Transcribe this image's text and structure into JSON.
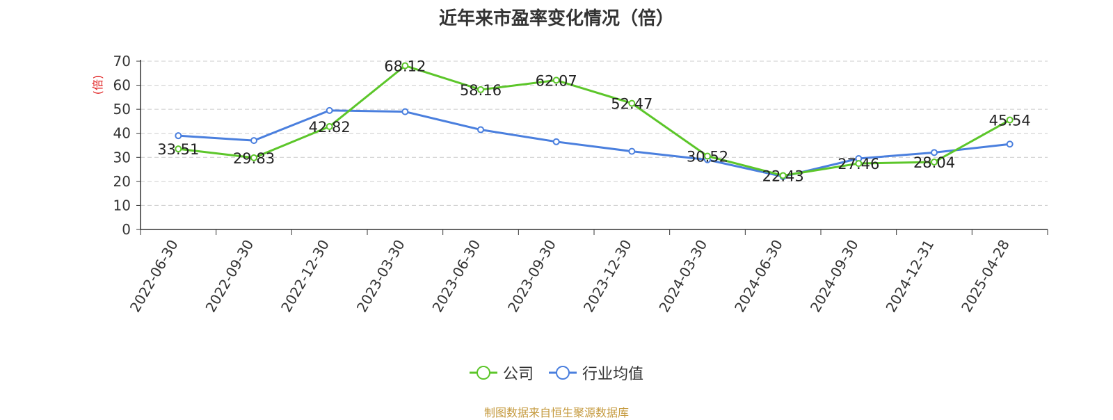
{
  "chart_data": {
    "type": "line",
    "title": "近年来市盈率变化情况（倍）",
    "ylabel": "(倍)",
    "xlabel": "",
    "ylim": [
      0,
      70
    ],
    "yticks": [
      0,
      10,
      20,
      30,
      40,
      50,
      60,
      70
    ],
    "grid": true,
    "legend_position": "bottom",
    "categories": [
      "2022-06-30",
      "2022-09-30",
      "2022-12-30",
      "2023-03-30",
      "2023-06-30",
      "2023-09-30",
      "2023-12-30",
      "2024-03-30",
      "2024-06-30",
      "2024-09-30",
      "2024-12-31",
      "2025-04-28"
    ],
    "series": [
      {
        "name": "公司",
        "color": "#5cc62a",
        "values": [
          33.51,
          29.83,
          42.82,
          68.12,
          58.16,
          62.07,
          52.47,
          30.52,
          22.43,
          27.46,
          28.04,
          45.54
        ],
        "labels": [
          "33.51",
          "29.83",
          "42.82",
          "68.12",
          "58.16",
          "62.07",
          "52.47",
          "30.52",
          "22.43",
          "27.46",
          "28.04",
          "45.54"
        ]
      },
      {
        "name": "行业均值",
        "color": "#4a7fde",
        "values": [
          39.0,
          37.0,
          49.5,
          49.0,
          41.5,
          36.5,
          32.5,
          29.0,
          22.0,
          29.5,
          32.0,
          35.5
        ]
      }
    ]
  },
  "footer": {
    "source": "制图数据来自恒生聚源数据库"
  }
}
